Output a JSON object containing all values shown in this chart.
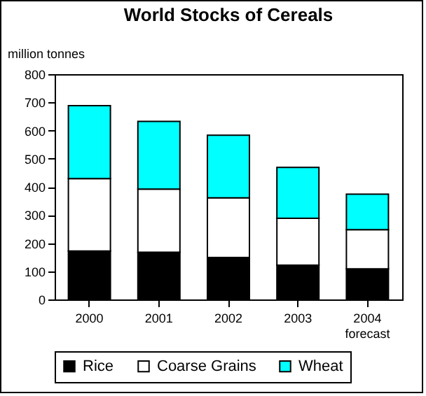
{
  "chart_data": {
    "type": "bar",
    "title": "World Stocks of Cereals",
    "ylabel": "million tonnes",
    "categories": [
      "2000",
      "2001",
      "2002",
      "2003",
      "2004\nforecast"
    ],
    "stacked": true,
    "series": [
      {
        "name": "Rice",
        "color": "#000000",
        "values": [
          172,
          168,
          149,
          122,
          109
        ]
      },
      {
        "name": "Coarse Grains",
        "color": "#ffffff",
        "values": [
          257,
          224,
          212,
          166,
          139
        ]
      },
      {
        "name": "Wheat",
        "color": "#00ffff",
        "values": [
          259,
          240,
          222,
          181,
          126
        ]
      }
    ],
    "ylim": [
      0,
      800
    ],
    "yticks": [
      0,
      100,
      200,
      300,
      400,
      500,
      600,
      700,
      800
    ],
    "grid": false,
    "legend": "bottom"
  }
}
